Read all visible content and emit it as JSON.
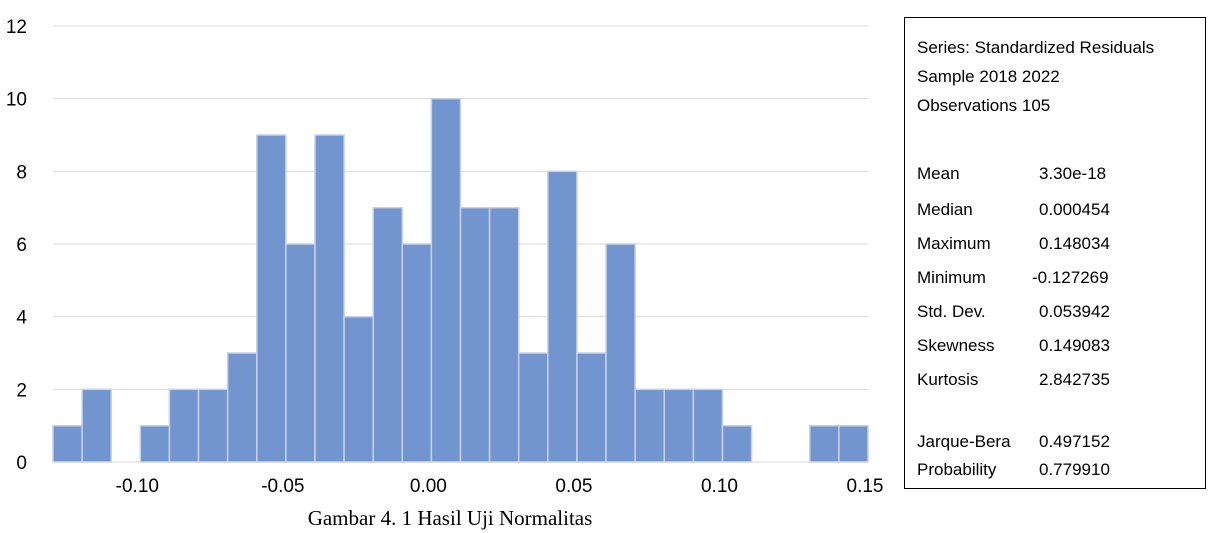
{
  "chart_data": {
    "type": "bar",
    "subtype": "histogram",
    "bin_width": 0.01,
    "bin_centers": [
      -0.125,
      -0.115,
      -0.105,
      -0.095,
      -0.085,
      -0.075,
      -0.065,
      -0.055,
      -0.045,
      -0.035,
      -0.025,
      -0.015,
      -0.005,
      0.005,
      0.015,
      0.025,
      0.035,
      0.045,
      0.055,
      0.065,
      0.075,
      0.085,
      0.095,
      0.105,
      0.115,
      0.125,
      0.135,
      0.145
    ],
    "values": [
      1,
      2,
      0,
      1,
      2,
      2,
      3,
      9,
      6,
      9,
      4,
      7,
      6,
      10,
      7,
      7,
      3,
      8,
      3,
      6,
      2,
      2,
      2,
      1,
      0,
      0,
      1,
      1
    ],
    "xlim": [
      -0.13,
      0.15
    ],
    "ylim": [
      0,
      12
    ],
    "x_ticks": [
      -0.1,
      -0.05,
      0.0,
      0.05,
      0.1,
      0.15
    ],
    "x_tick_labels": [
      "-0.10",
      "-0.05",
      "0.00",
      "0.05",
      "0.10",
      "0.15"
    ],
    "y_ticks": [
      0,
      2,
      4,
      6,
      8,
      10,
      12
    ],
    "y_tick_labels": [
      "0",
      "2",
      "4",
      "6",
      "8",
      "10",
      "12"
    ],
    "grid": true,
    "bar_color": "#7395cf",
    "bar_edge_color": "#c8d2e4",
    "title": "",
    "xlabel": "",
    "ylabel": ""
  },
  "caption": "Gambar 4. 1 Hasil Uji Normalitas",
  "stats": {
    "header": [
      "Series: Standardized Residuals",
      "Sample 2018 2022",
      "Observations 105"
    ],
    "descriptive": [
      {
        "label": "Mean",
        "value": "3.30e-18"
      },
      {
        "label": "Median",
        "value": "0.000454"
      },
      {
        "label": "Maximum",
        "value": "0.148034"
      },
      {
        "label": "Minimum",
        "value": "-0.127269"
      },
      {
        "label": "Std. Dev.",
        "value": "0.053942"
      },
      {
        "label": "Skewness",
        "value": "0.149083"
      },
      {
        "label": "Kurtosis",
        "value": "2.842735"
      }
    ],
    "tests": [
      {
        "label": "Jarque-Bera",
        "value": "0.497152"
      },
      {
        "label": "Probability",
        "value": "0.779910"
      }
    ]
  }
}
